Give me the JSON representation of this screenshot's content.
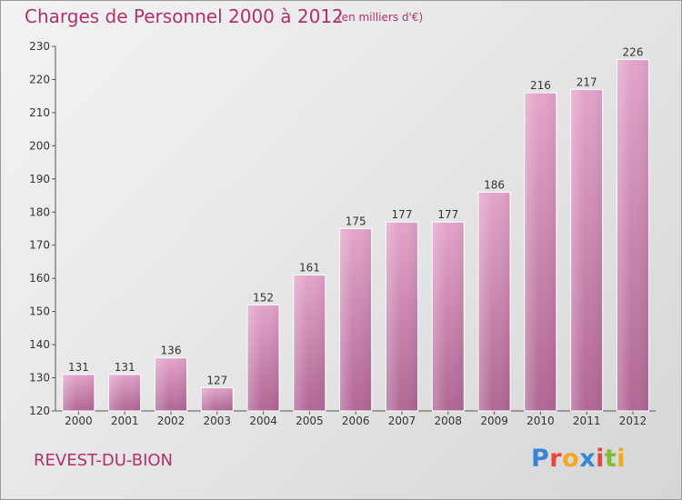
{
  "header": {
    "title": "Charges de Personnel 2000 à 2012",
    "subtitle": "(en milliers d'€)"
  },
  "footer": {
    "commune": "REVEST-DU-BION",
    "logo_text": "Proxiti",
    "logo_colors": [
      "#3a86d6",
      "#e8473a",
      "#f2a81f",
      "#3a86d6",
      "#e8473a",
      "#7cbd33",
      "#f2a81f"
    ]
  },
  "colors": {
    "bar_top": "#e3a4ca",
    "bar_bottom": "#b06795",
    "bar_edge": "#ffffff",
    "axis": "#555555",
    "text": "#b0316c"
  },
  "chart_data": {
    "type": "bar",
    "title": "Charges de Personnel 2000 à 2012",
    "subtitle": "(en milliers d'€)",
    "categories": [
      "2000",
      "2001",
      "2002",
      "2003",
      "2004",
      "2005",
      "2006",
      "2007",
      "2008",
      "2009",
      "2010",
      "2011",
      "2012"
    ],
    "values": [
      131,
      131,
      136,
      127,
      152,
      161,
      175,
      177,
      177,
      186,
      216,
      217,
      226
    ],
    "ylim": [
      120,
      230
    ],
    "yticks": [
      120,
      130,
      140,
      150,
      160,
      170,
      180,
      190,
      200,
      210,
      220,
      230
    ],
    "grid": false,
    "data_labels": true
  }
}
